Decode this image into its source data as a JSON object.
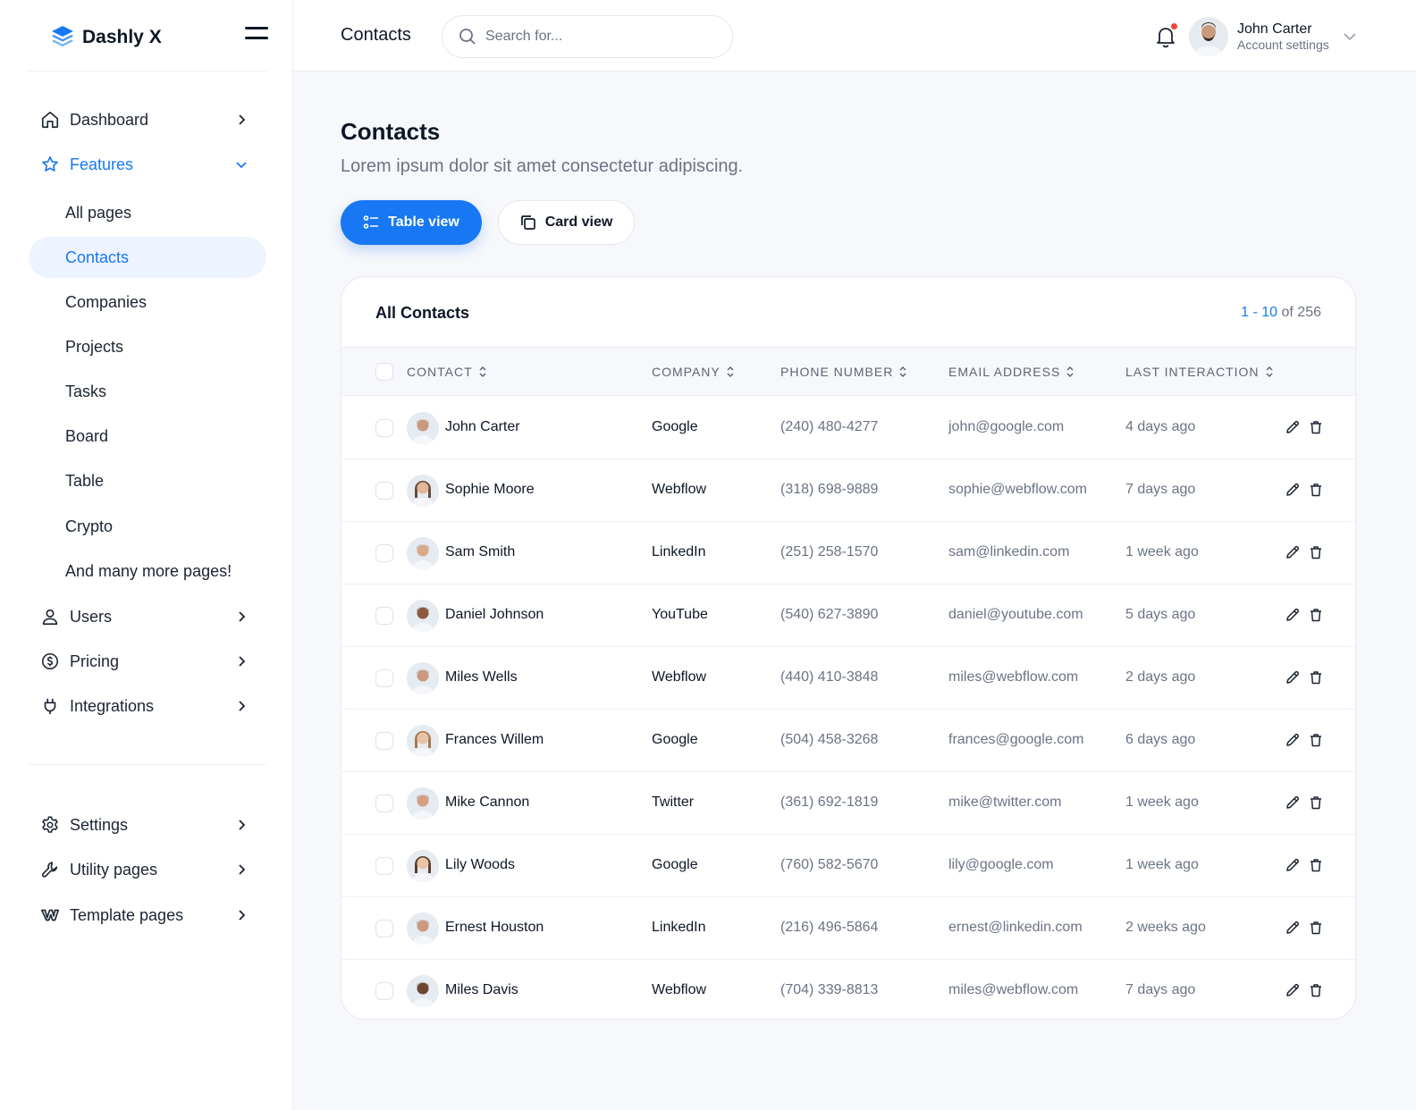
{
  "brand": {
    "name": "Dashly X"
  },
  "sidebar": {
    "items": [
      {
        "label": "Dashboard",
        "icon": "home-icon"
      },
      {
        "label": "Features",
        "icon": "star-icon"
      }
    ],
    "sub_items": [
      "All pages",
      "Contacts",
      "Companies",
      "Projects",
      "Tasks",
      "Board",
      "Table",
      "Crypto",
      "And many more pages!"
    ],
    "items_after": [
      {
        "label": "Users",
        "icon": "user-icon"
      },
      {
        "label": "Pricing",
        "icon": "dollar-icon"
      },
      {
        "label": "Integrations",
        "icon": "plug-icon"
      }
    ],
    "bottom_items": [
      {
        "label": "Settings",
        "icon": "gear-icon"
      },
      {
        "label": "Utility pages",
        "icon": "wrench-icon"
      },
      {
        "label": "Template pages",
        "icon": "webflow-icon"
      }
    ]
  },
  "topbar": {
    "title": "Contacts",
    "search_placeholder": "Search for...",
    "user_name": "John Carter",
    "user_sub": "Account settings"
  },
  "page": {
    "title": "Contacts",
    "subtitle": "Lorem ipsum dolor sit amet consectetur adipiscing.",
    "table_view": "Table view",
    "card_view": "Card view"
  },
  "table": {
    "title": "All Contacts",
    "range": "1 - 10",
    "of_total": " of 256",
    "columns": [
      "CONTACT",
      "COMPANY",
      "PHONE NUMBER",
      "EMAIL ADDRESS",
      "LAST INTERACTION"
    ],
    "rows": [
      {
        "name": "John Carter",
        "company": "Google",
        "phone": "(240) 480-4277",
        "email": "john@google.com",
        "last": "4 days ago"
      },
      {
        "name": "Sophie Moore",
        "company": "Webflow",
        "phone": "(318) 698-9889",
        "email": "sophie@webflow.com",
        "last": "7 days ago"
      },
      {
        "name": "Sam Smith",
        "company": "LinkedIn",
        "phone": "(251) 258-1570",
        "email": "sam@linkedin.com",
        "last": "1 week ago"
      },
      {
        "name": "Daniel Johnson",
        "company": "YouTube",
        "phone": "(540) 627-3890",
        "email": "daniel@youtube.com",
        "last": "5 days ago"
      },
      {
        "name": "Miles Wells",
        "company": "Webflow",
        "phone": "(440) 410-3848",
        "email": "miles@webflow.com",
        "last": "2 days ago"
      },
      {
        "name": "Frances Willem",
        "company": "Google",
        "phone": "(504) 458-3268",
        "email": "frances@google.com",
        "last": "6 days ago"
      },
      {
        "name": "Mike Cannon",
        "company": "Twitter",
        "phone": "(361) 692-1819",
        "email": "mike@twitter.com",
        "last": "1 week ago"
      },
      {
        "name": "Lily Woods",
        "company": "Google",
        "phone": "(760) 582-5670",
        "email": "lily@google.com",
        "last": "1 week ago"
      },
      {
        "name": "Ernest Houston",
        "company": "LinkedIn",
        "phone": "(216) 496-5864",
        "email": "ernest@linkedin.com",
        "last": "2 weeks ago"
      },
      {
        "name": "Miles Davis",
        "company": "Webflow",
        "phone": "(704) 339-8813",
        "email": "miles@webflow.com",
        "last": "7 days ago"
      }
    ]
  },
  "colors": {
    "accent": "#1878f3",
    "text": "#0e1726",
    "muted": "#6b7385",
    "notification": "#f04438"
  }
}
